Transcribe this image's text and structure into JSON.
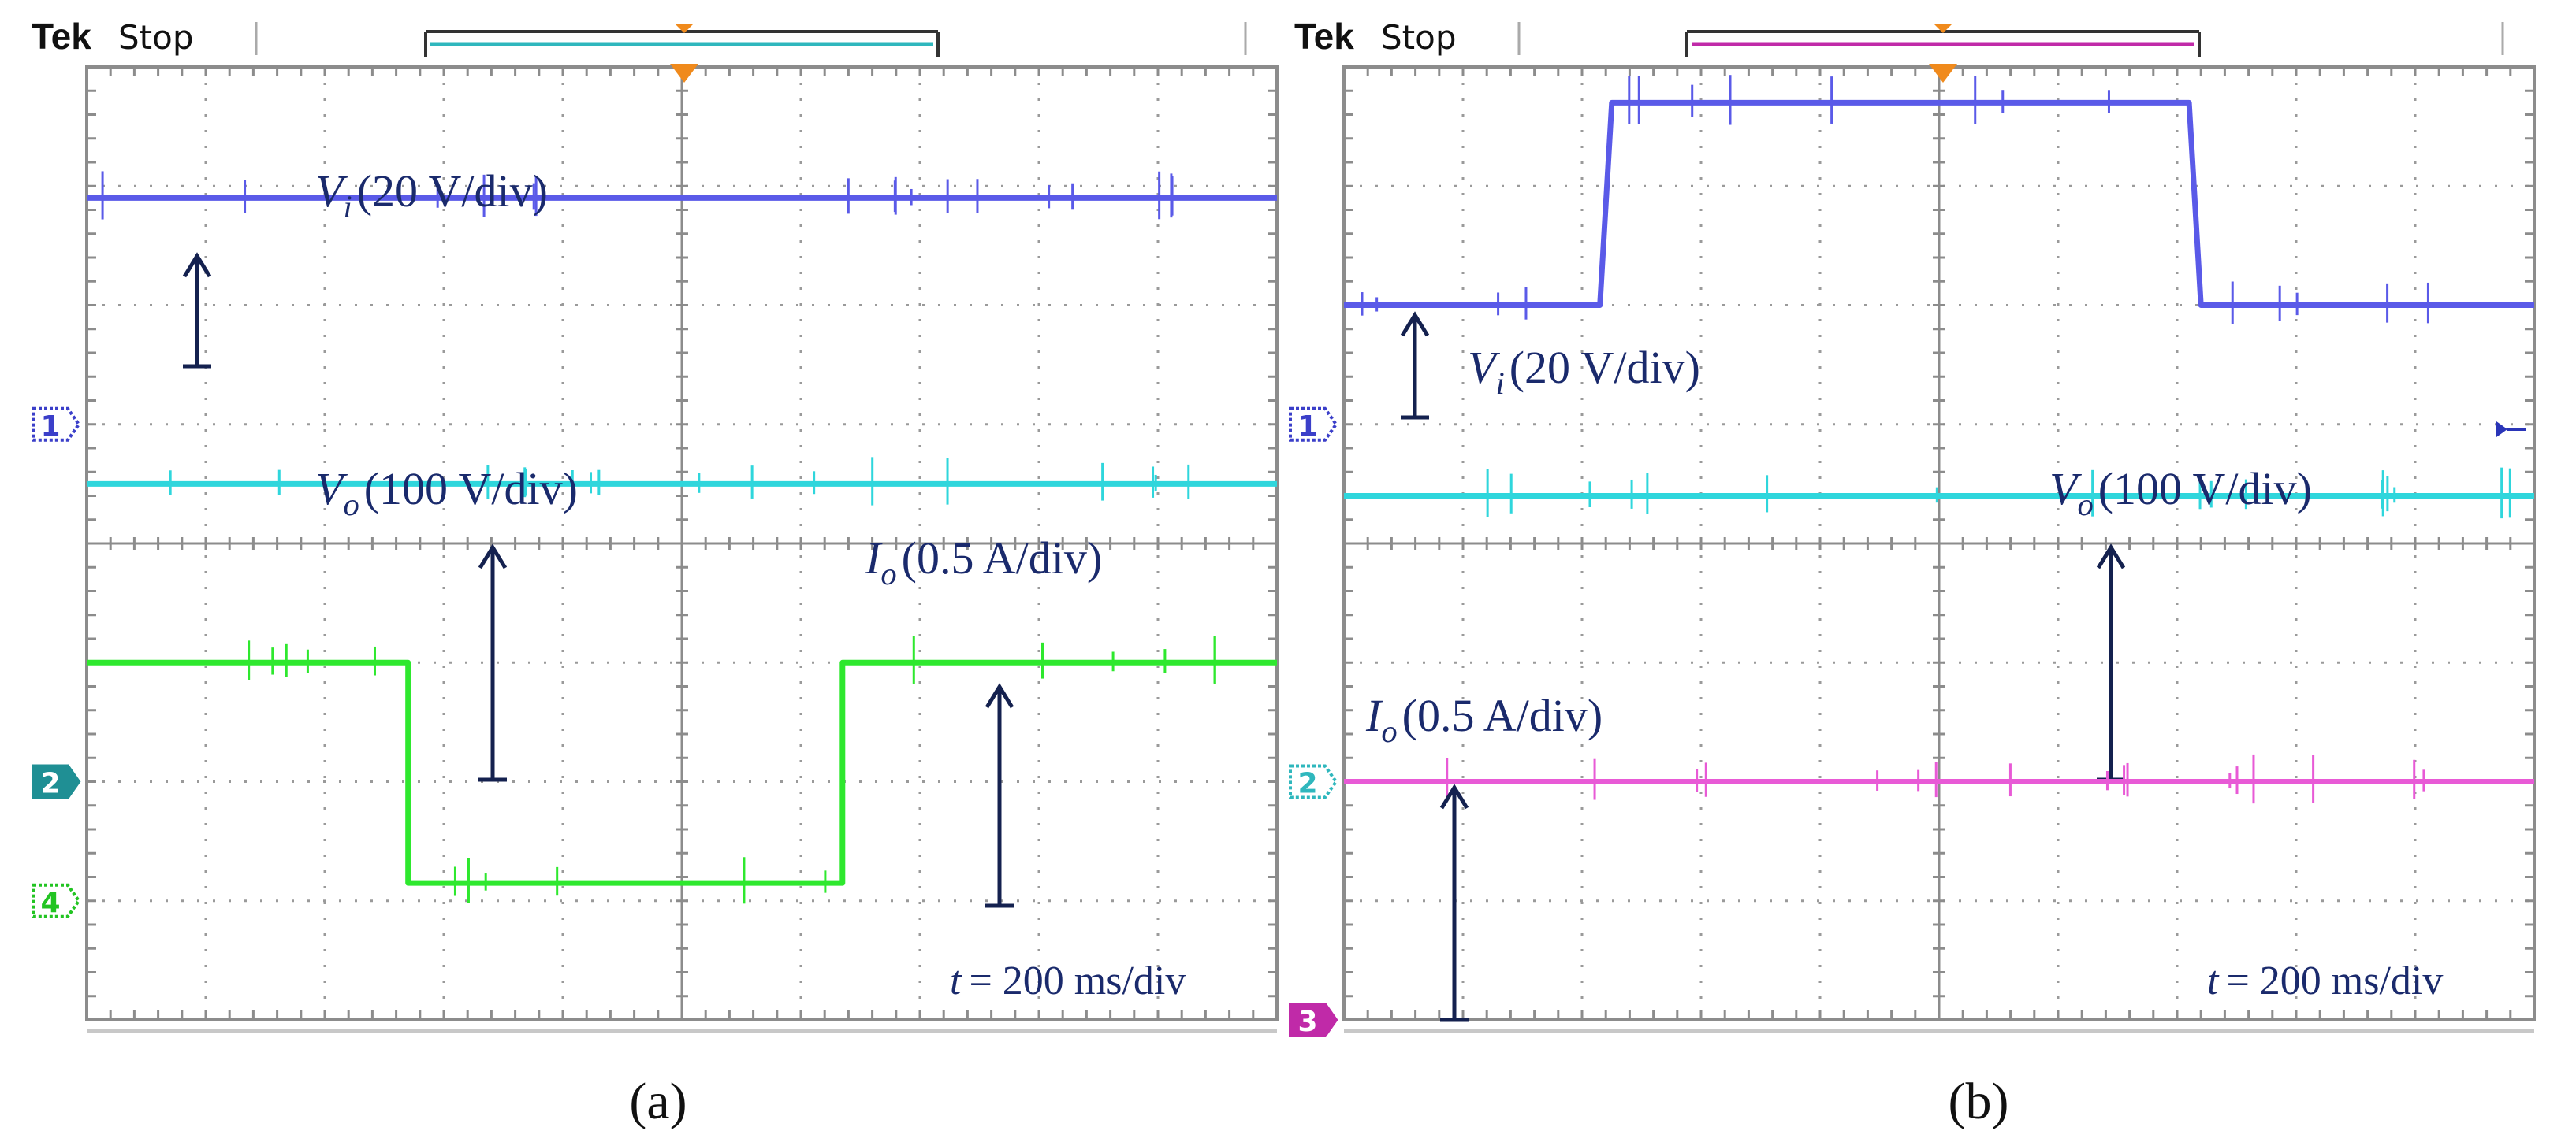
{
  "chart_data": [
    {
      "type": "line",
      "panel_caption": "(a)",
      "header": {
        "brand": "Tek",
        "status": "Stop"
      },
      "grid": {
        "x_divisions": 10,
        "y_divisions": 8,
        "grid": true,
        "minor_ticks": 5
      },
      "timebase": {
        "label": "t",
        "value": "= 200 ms/div"
      },
      "markers": [
        {
          "id": "1",
          "color": "#3b3fc9",
          "level_div": 5.0,
          "style": "outline"
        },
        {
          "id": "2",
          "color": "#1f8f94",
          "level_div": 2.0,
          "style": "filled"
        },
        {
          "id": "4",
          "color": "#22c422",
          "level_div": 1.0,
          "style": "outline"
        }
      ],
      "series": [
        {
          "name": "Vi (20 V/div)",
          "label_base": "V",
          "label_sub": "i",
          "label_rest": "(20 V/div)",
          "color": "#5a5ae8",
          "x": [
            0,
            10
          ],
          "y": [
            6.9,
            6.9
          ]
        },
        {
          "name": "Vo (100 V/div)",
          "label_base": "V",
          "label_sub": "o",
          "label_rest": "(100 V/div)",
          "color": "#2fd6dc",
          "x": [
            0,
            10
          ],
          "y": [
            4.5,
            4.5
          ]
        },
        {
          "name": "Io (0.5 A/div)",
          "label_base": "I",
          "label_sub": "o",
          "label_rest": "(0.5 A/div)",
          "color": "#2ee82e",
          "x": [
            0,
            2.7,
            2.7,
            6.35,
            6.35,
            10
          ],
          "y": [
            3.0,
            3.0,
            1.15,
            1.15,
            3.0,
            3.0
          ]
        }
      ]
    },
    {
      "type": "line",
      "panel_caption": "(b)",
      "header": {
        "brand": "Tek",
        "status": "Stop"
      },
      "grid": {
        "x_divisions": 10,
        "y_divisions": 8,
        "grid": true,
        "minor_ticks": 5
      },
      "timebase": {
        "label": "t",
        "value": "= 200 ms/div"
      },
      "markers": [
        {
          "id": "1",
          "color": "#3b3fc9",
          "level_div": 5.0,
          "style": "outline"
        },
        {
          "id": "2",
          "color": "#2fb7bd",
          "level_div": 2.0,
          "style": "outline"
        },
        {
          "id": "3",
          "color": "#c02aa8",
          "level_div": 0.0,
          "style": "filled"
        }
      ],
      "series": [
        {
          "name": "Vi (20 V/div)",
          "label_base": "V",
          "label_sub": "i",
          "label_rest": "(20 V/div)",
          "color": "#5a5ae8",
          "x": [
            0,
            2.15,
            2.25,
            7.1,
            7.2,
            10
          ],
          "y": [
            6.0,
            6.0,
            7.7,
            7.7,
            6.0,
            6.0
          ]
        },
        {
          "name": "Vo (100 V/div)",
          "label_base": "V",
          "label_sub": "o",
          "label_rest": "(100 V/div)",
          "color": "#2fd6dc",
          "x": [
            0,
            10
          ],
          "y": [
            4.4,
            4.4
          ]
        },
        {
          "name": "Io (0.5 A/div)",
          "label_base": "I",
          "label_sub": "o",
          "label_rest": "(0.5 A/div)",
          "color": "#e85ad6",
          "x": [
            0,
            10
          ],
          "y": [
            2.0,
            2.0
          ]
        }
      ]
    }
  ]
}
